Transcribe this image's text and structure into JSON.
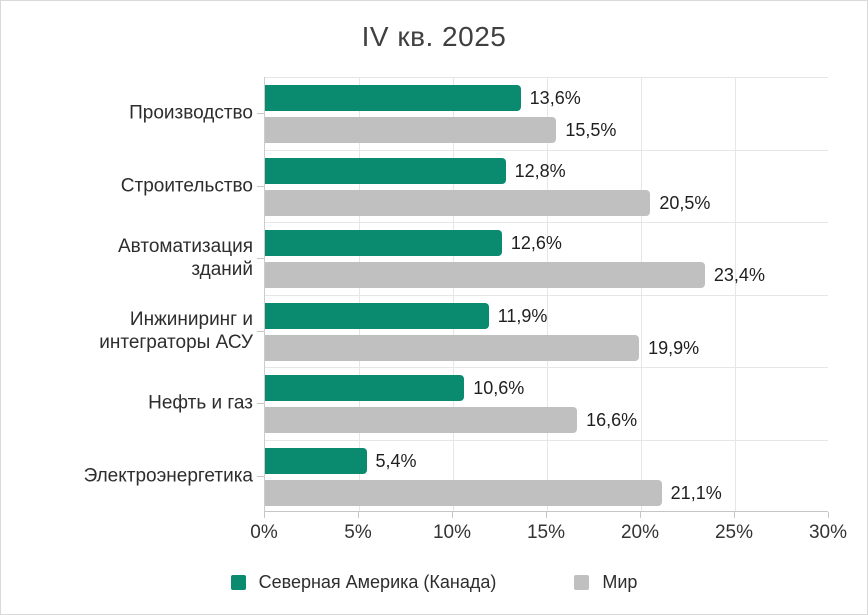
{
  "title": "IV кв. 2025",
  "colors": {
    "primary": "#0a8a6f",
    "secondary": "#c0c0c0",
    "gridline": "#e6e6e6",
    "axis": "#c6c6c6",
    "title_text": "#404040",
    "label_text": "#2d2d2d"
  },
  "chart_data": {
    "type": "bar",
    "orientation": "horizontal",
    "title": "IV кв. 2025",
    "categories": [
      "Производство",
      "Строительство",
      "Автоматизация зданий",
      "Инжиниринг и интеграторы АСУ",
      "Нефть и газ",
      "Электроэнергетика"
    ],
    "category_lines": [
      [
        "Производство"
      ],
      [
        "Строительство"
      ],
      [
        "Автоматизация",
        "зданий"
      ],
      [
        "Инжиниринг и",
        "интеграторы АСУ"
      ],
      [
        "Нефть и газ"
      ],
      [
        "Электроэнергетика"
      ]
    ],
    "series": [
      {
        "name": "Северная Америка (Канада)",
        "color": "#0a8a6f",
        "values": [
          13.6,
          12.8,
          12.6,
          11.9,
          10.6,
          5.4
        ],
        "labels": [
          "13,6%",
          "12,8%",
          "12,6%",
          "11,9%",
          "10,6%",
          "5,4%"
        ]
      },
      {
        "name": "Мир",
        "color": "#c0c0c0",
        "values": [
          15.5,
          20.5,
          23.4,
          19.9,
          16.6,
          21.1
        ],
        "labels": [
          "15,5%",
          "20,5%",
          "23,4%",
          "19,9%",
          "16,6%",
          "21,1%"
        ]
      }
    ],
    "x_axis": {
      "min": 0,
      "max": 30,
      "tick_step": 5,
      "ticks": [
        "0%",
        "5%",
        "10%",
        "15%",
        "20%",
        "25%",
        "30%"
      ]
    },
    "grid": true,
    "legend_position": "bottom",
    "legend": [
      "Северная Америка (Канада)",
      "Мир"
    ]
  }
}
